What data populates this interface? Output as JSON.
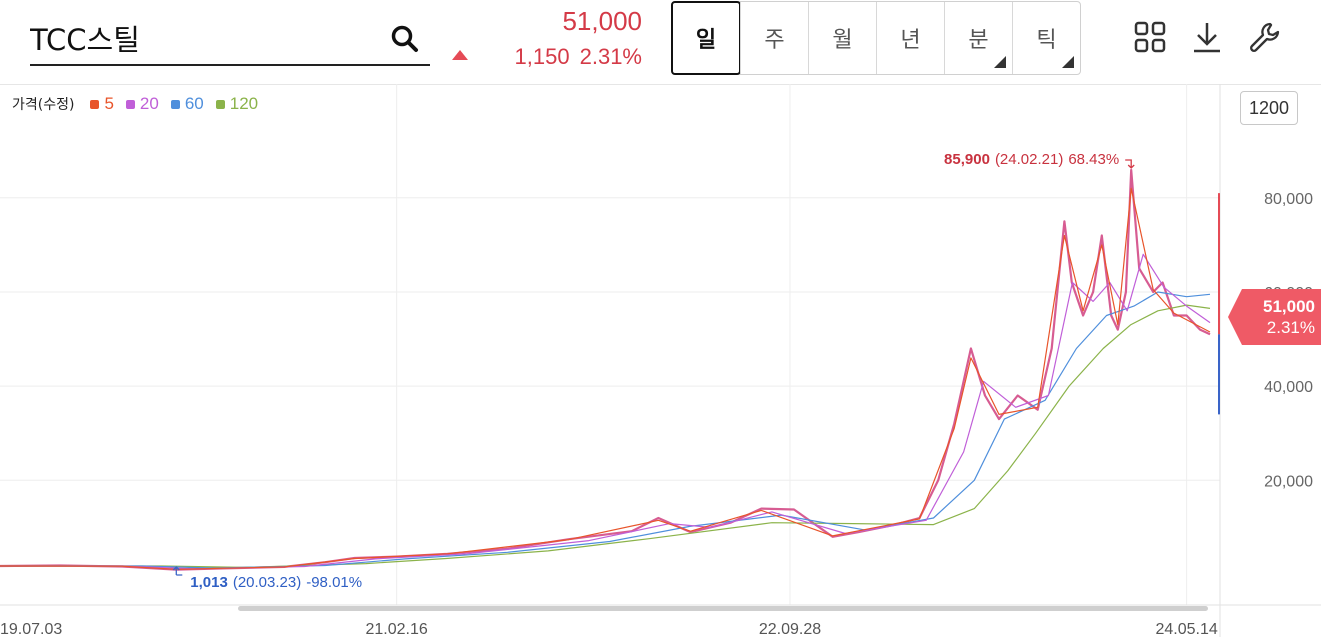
{
  "search": {
    "value": "TCC스틸"
  },
  "quote": {
    "price": "51,000",
    "change": "1,150",
    "change_pct": "2.31%"
  },
  "periods": [
    {
      "label": "일",
      "active": true,
      "has_submenu": false
    },
    {
      "label": "주",
      "active": false,
      "has_submenu": false
    },
    {
      "label": "월",
      "active": false,
      "has_submenu": false
    },
    {
      "label": "년",
      "active": false,
      "has_submenu": false
    },
    {
      "label": "분",
      "active": false,
      "has_submenu": true
    },
    {
      "label": "틱",
      "active": false,
      "has_submenu": true
    }
  ],
  "tools": [
    {
      "name": "layout-grid-icon"
    },
    {
      "name": "download-icon"
    },
    {
      "name": "wrench-icon"
    }
  ],
  "legend": {
    "label": "가격(수정)",
    "items": [
      {
        "label": "5",
        "color": "#e8542a"
      },
      {
        "label": "20",
        "color": "#c05fd8"
      },
      {
        "label": "60",
        "color": "#4f8fdc"
      },
      {
        "label": "120",
        "color": "#8bb34a"
      }
    ]
  },
  "count_button": "1200",
  "price_tag": {
    "price": "51,000",
    "pct": "2.31%"
  },
  "colors": {
    "up": "#e54b56",
    "down": "#3a64c8",
    "grid": "#eeeeee"
  },
  "chart_data": {
    "type": "line",
    "title": "",
    "x_ticks": [
      "19.07.03",
      "21.02.16",
      "22.09.28",
      "24.05.14"
    ],
    "x_range": [
      "2019-07-03",
      "2024-06-18"
    ],
    "y_ticks": [
      20000,
      40000,
      60000,
      80000
    ],
    "y_tick_labels": [
      "20,000",
      "40,000",
      "60,000",
      "80,000"
    ],
    "ylim": [
      0,
      95000
    ],
    "grid": true,
    "legend_position": "top-left",
    "high_marker": {
      "value": "85,900",
      "date_label": "(24.02.21)",
      "pct": "68.43%",
      "date": "2024-02-21",
      "y": 85900
    },
    "low_marker": {
      "value": "1,013",
      "date_label": "(20.03.23)",
      "pct": "-98.01%",
      "date": "2020-03-23",
      "y": 1013
    },
    "series": [
      {
        "name": "가격(수정)",
        "color": "#d34a86",
        "points": [
          [
            "2019-07-03",
            1800
          ],
          [
            "2019-10-01",
            1900
          ],
          [
            "2020-01-02",
            1700
          ],
          [
            "2020-03-23",
            1013
          ],
          [
            "2020-06-01",
            1300
          ],
          [
            "2020-09-01",
            1600
          ],
          [
            "2020-11-01",
            2600
          ],
          [
            "2020-12-15",
            3500
          ],
          [
            "2021-02-16",
            3800
          ],
          [
            "2021-05-03",
            4400
          ],
          [
            "2021-08-02",
            5500
          ],
          [
            "2021-11-01",
            7500
          ],
          [
            "2022-02-03",
            9200
          ],
          [
            "2022-03-15",
            12000
          ],
          [
            "2022-05-02",
            9000
          ],
          [
            "2022-07-01",
            11000
          ],
          [
            "2022-08-16",
            14000
          ],
          [
            "2022-10-04",
            13800
          ],
          [
            "2022-12-01",
            8000
          ],
          [
            "2023-01-09",
            9000
          ],
          [
            "2023-03-02",
            10500
          ],
          [
            "2023-04-10",
            12000
          ],
          [
            "2023-05-08",
            20000
          ],
          [
            "2023-06-01",
            32000
          ],
          [
            "2023-06-26",
            48000
          ],
          [
            "2023-07-17",
            38000
          ],
          [
            "2023-08-07",
            33000
          ],
          [
            "2023-09-04",
            38000
          ],
          [
            "2023-10-04",
            35000
          ],
          [
            "2023-10-25",
            48000
          ],
          [
            "2023-11-13",
            75000
          ],
          [
            "2023-11-24",
            62000
          ],
          [
            "2023-12-11",
            55000
          ],
          [
            "2023-12-26",
            60000
          ],
          [
            "2024-01-08",
            72000
          ],
          [
            "2024-01-22",
            55000
          ],
          [
            "2024-02-01",
            52000
          ],
          [
            "2024-02-13",
            60000
          ],
          [
            "2024-02-21",
            85900
          ],
          [
            "2024-03-04",
            65000
          ],
          [
            "2024-03-25",
            60000
          ],
          [
            "2024-04-08",
            62000
          ],
          [
            "2024-04-25",
            55000
          ],
          [
            "2024-05-14",
            55000
          ],
          [
            "2024-06-03",
            52000
          ],
          [
            "2024-06-18",
            51000
          ]
        ]
      },
      {
        "name": "5",
        "color": "#e8542a",
        "points": [
          [
            "2019-07-03",
            1800
          ],
          [
            "2020-01-02",
            1750
          ],
          [
            "2020-03-23",
            1100
          ],
          [
            "2020-09-01",
            1600
          ],
          [
            "2020-12-15",
            3400
          ],
          [
            "2021-05-03",
            4400
          ],
          [
            "2021-11-01",
            7400
          ],
          [
            "2022-03-15",
            11500
          ],
          [
            "2022-05-02",
            9200
          ],
          [
            "2022-08-16",
            13600
          ],
          [
            "2022-12-01",
            8200
          ],
          [
            "2023-04-10",
            11800
          ],
          [
            "2023-06-01",
            31000
          ],
          [
            "2023-06-26",
            46000
          ],
          [
            "2023-08-07",
            34000
          ],
          [
            "2023-10-04",
            35500
          ],
          [
            "2023-11-13",
            72000
          ],
          [
            "2023-12-11",
            56000
          ],
          [
            "2024-01-08",
            70000
          ],
          [
            "2024-02-01",
            53000
          ],
          [
            "2024-02-21",
            82000
          ],
          [
            "2024-03-25",
            60500
          ],
          [
            "2024-04-25",
            55500
          ],
          [
            "2024-06-18",
            51500
          ]
        ]
      },
      {
        "name": "20",
        "color": "#c05fd8",
        "points": [
          [
            "2019-07-03",
            1800
          ],
          [
            "2020-01-02",
            1800
          ],
          [
            "2020-04-20",
            1200
          ],
          [
            "2020-10-01",
            1700
          ],
          [
            "2021-01-15",
            3300
          ],
          [
            "2021-06-01",
            4400
          ],
          [
            "2021-12-01",
            7200
          ],
          [
            "2022-04-01",
            10800
          ],
          [
            "2022-06-01",
            10000
          ],
          [
            "2022-09-01",
            13300
          ],
          [
            "2022-12-20",
            8700
          ],
          [
            "2023-04-20",
            11500
          ],
          [
            "2023-06-15",
            26000
          ],
          [
            "2023-07-15",
            41000
          ],
          [
            "2023-09-01",
            35500
          ],
          [
            "2023-10-20",
            38000
          ],
          [
            "2023-11-25",
            62000
          ],
          [
            "2023-12-26",
            58000
          ],
          [
            "2024-01-20",
            62000
          ],
          [
            "2024-02-15",
            56000
          ],
          [
            "2024-03-10",
            68000
          ],
          [
            "2024-04-10",
            61000
          ],
          [
            "2024-05-14",
            57000
          ],
          [
            "2024-06-18",
            53500
          ]
        ]
      },
      {
        "name": "60",
        "color": "#4f8fdc",
        "points": [
          [
            "2019-07-03",
            1800
          ],
          [
            "2020-02-01",
            1800
          ],
          [
            "2020-05-20",
            1350
          ],
          [
            "2020-11-01",
            1900
          ],
          [
            "2021-03-01",
            3300
          ],
          [
            "2021-08-01",
            4700
          ],
          [
            "2022-01-01",
            7000
          ],
          [
            "2022-05-01",
            10200
          ],
          [
            "2022-09-15",
            12600
          ],
          [
            "2023-01-20",
            9400
          ],
          [
            "2023-05-01",
            12000
          ],
          [
            "2023-07-01",
            20000
          ],
          [
            "2023-08-15",
            33000
          ],
          [
            "2023-10-15",
            37000
          ],
          [
            "2023-12-01",
            48000
          ],
          [
            "2024-01-15",
            55000
          ],
          [
            "2024-02-25",
            57000
          ],
          [
            "2024-04-01",
            60000
          ],
          [
            "2024-05-14",
            59000
          ],
          [
            "2024-06-18",
            59500
          ]
        ]
      },
      {
        "name": "120",
        "color": "#8bb34a",
        "points": [
          [
            "2019-07-03",
            1800
          ],
          [
            "2020-03-01",
            1800
          ],
          [
            "2020-07-01",
            1500
          ],
          [
            "2021-01-01",
            2300
          ],
          [
            "2021-05-01",
            3400
          ],
          [
            "2021-10-01",
            5000
          ],
          [
            "2022-03-01",
            7600
          ],
          [
            "2022-09-01",
            11000
          ],
          [
            "2023-01-01",
            10800
          ],
          [
            "2023-05-01",
            10600
          ],
          [
            "2023-07-01",
            14000
          ],
          [
            "2023-08-20",
            22000
          ],
          [
            "2023-10-01",
            30000
          ],
          [
            "2023-11-20",
            40000
          ],
          [
            "2024-01-10",
            48000
          ],
          [
            "2024-02-20",
            53000
          ],
          [
            "2024-04-01",
            56000
          ],
          [
            "2024-05-14",
            57200
          ],
          [
            "2024-06-18",
            56500
          ]
        ]
      }
    ]
  }
}
